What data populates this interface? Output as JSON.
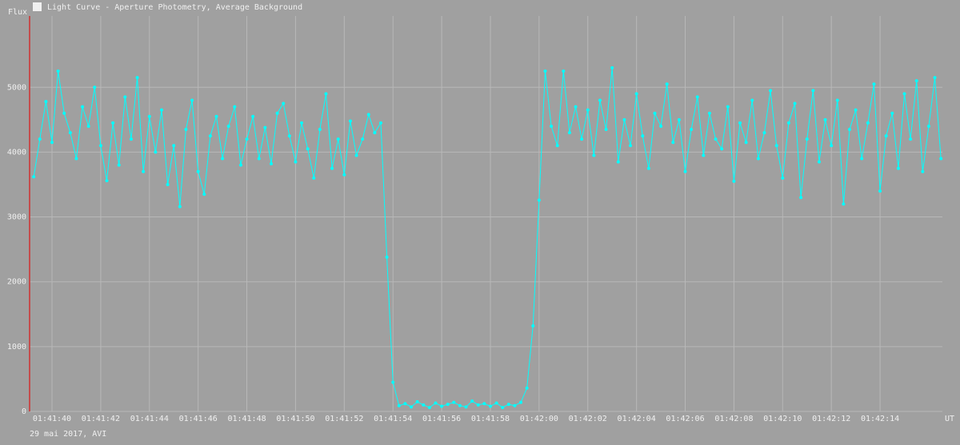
{
  "chart_data": {
    "type": "line",
    "title": "Light Curve - Aperture Photometry, Average Background",
    "y_label": "Flux",
    "x_label": "UT",
    "footer": "29 mai 2017, AVI",
    "color": "#00ffff",
    "grid": true,
    "xlim": [
      6099.08,
      6136.56
    ],
    "ylim": [
      0,
      6100
    ],
    "yticks": [
      0,
      1000,
      2000,
      3000,
      4000,
      5000
    ],
    "xticks": [
      {
        "value": 6100,
        "label": "01:41:40"
      },
      {
        "value": 6102,
        "label": "01:41:42"
      },
      {
        "value": 6104,
        "label": "01:41:44"
      },
      {
        "value": 6106,
        "label": "01:41:46"
      },
      {
        "value": 6108,
        "label": "01:41:48"
      },
      {
        "value": 6110,
        "label": "01:41:50"
      },
      {
        "value": 6112,
        "label": "01:41:52"
      },
      {
        "value": 6114,
        "label": "01:41:54"
      },
      {
        "value": 6116,
        "label": "01:41:56"
      },
      {
        "value": 6118,
        "label": "01:41:58"
      },
      {
        "value": 6120,
        "label": "01:42:00"
      },
      {
        "value": 6122,
        "label": "01:42:02"
      },
      {
        "value": 6124,
        "label": "01:42:04"
      },
      {
        "value": 6126,
        "label": "01:42:06"
      },
      {
        "value": 6128,
        "label": "01:42:08"
      },
      {
        "value": 6130,
        "label": "01:42:10"
      },
      {
        "value": 6132,
        "label": "01:42:12"
      },
      {
        "value": 6134,
        "label": "01:42:14"
      }
    ],
    "x": [
      6099.25,
      6099.5,
      6099.75,
      6100,
      6100.25,
      6100.5,
      6100.75,
      6101,
      6101.25,
      6101.5,
      6101.75,
      6102,
      6102.25,
      6102.5,
      6102.75,
      6103,
      6103.25,
      6103.5,
      6103.75,
      6104,
      6104.25,
      6104.5,
      6104.75,
      6105,
      6105.25,
      6105.5,
      6105.75,
      6106,
      6106.25,
      6106.5,
      6106.75,
      6107,
      6107.25,
      6107.5,
      6107.75,
      6108,
      6108.25,
      6108.5,
      6108.75,
      6109,
      6109.25,
      6109.5,
      6109.75,
      6110,
      6110.25,
      6110.5,
      6110.75,
      6111,
      6111.25,
      6111.5,
      6111.75,
      6112,
      6112.25,
      6112.5,
      6112.75,
      6113,
      6113.25,
      6113.5,
      6113.75,
      6114,
      6114.25,
      6114.5,
      6114.75,
      6115,
      6115.25,
      6115.5,
      6115.75,
      6116,
      6116.25,
      6116.5,
      6116.75,
      6117,
      6117.25,
      6117.5,
      6117.75,
      6118,
      6118.25,
      6118.5,
      6118.75,
      6119,
      6119.25,
      6119.5,
      6119.75,
      6120,
      6120.25,
      6120.5,
      6120.75,
      6121,
      6121.25,
      6121.5,
      6121.75,
      6122,
      6122.25,
      6122.5,
      6122.75,
      6123,
      6123.25,
      6123.5,
      6123.75,
      6124,
      6124.25,
      6124.5,
      6124.75,
      6125,
      6125.25,
      6125.5,
      6125.75,
      6126,
      6126.25,
      6126.5,
      6126.75,
      6127,
      6127.25,
      6127.5,
      6127.75,
      6128,
      6128.25,
      6128.5,
      6128.75,
      6129,
      6129.25,
      6129.5,
      6129.75,
      6130,
      6130.25,
      6130.5,
      6130.75,
      6131,
      6131.25,
      6131.5,
      6131.75,
      6132,
      6132.25,
      6132.5,
      6132.75,
      6133,
      6133.25,
      6133.5,
      6133.75,
      6134,
      6134.25,
      6134.5,
      6134.75,
      6135,
      6135.25,
      6135.5,
      6135.75,
      6136,
      6136.25,
      6136.5
    ],
    "values": [
      3620,
      4200,
      4780,
      4150,
      5250,
      4600,
      4300,
      3900,
      4700,
      4400,
      5000,
      4100,
      3560,
      4450,
      3800,
      4850,
      4200,
      5150,
      3700,
      4550,
      4000,
      4650,
      3500,
      4100,
      3160,
      4350,
      4800,
      3700,
      3350,
      4250,
      4550,
      3900,
      4400,
      4700,
      3800,
      4200,
      4550,
      3900,
      4380,
      3820,
      4600,
      4750,
      4250,
      3850,
      4450,
      4050,
      3600,
      4350,
      4900,
      3750,
      4200,
      3650,
      4480,
      3950,
      4200,
      4580,
      4300,
      4450,
      2380,
      450,
      90,
      120,
      70,
      150,
      100,
      60,
      130,
      80,
      110,
      140,
      90,
      70,
      160,
      100,
      120,
      80,
      130,
      60,
      110,
      90,
      140,
      360,
      1320,
      3260,
      5250,
      4400,
      4100,
      5250,
      4300,
      4700,
      4200,
      4650,
      3950,
      4800,
      4350,
      5300,
      3850,
      4500,
      4100,
      4900,
      4250,
      3750,
      4600,
      4400,
      5050,
      4150,
      4500,
      3700,
      4350,
      4850,
      3950,
      4600,
      4200,
      4050,
      4700,
      3550,
      4450,
      4150,
      4800,
      3900,
      4300,
      4950,
      4100,
      3600,
      4450,
      4750,
      3300,
      4200,
      4950,
      3850,
      4500,
      4100,
      4800,
      3200,
      4350,
      4650,
      3900,
      4450,
      5050,
      3400,
      4250,
      4600,
      3750,
      4900,
      4200,
      5100,
      3700,
      4400,
      5150,
      3900
    ]
  }
}
